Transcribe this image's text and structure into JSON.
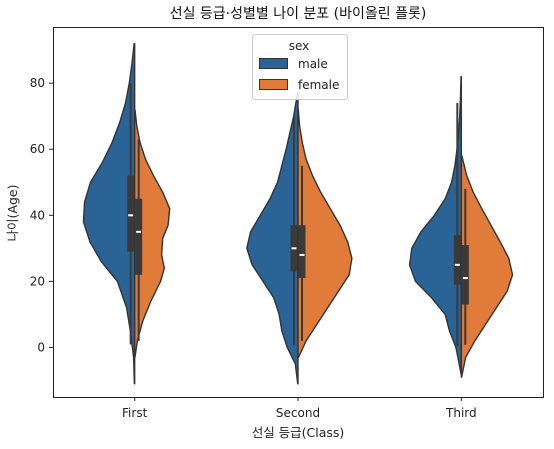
{
  "chart_data": {
    "type": "violin",
    "title": "선실 등급·성별별 나이 분포 (바이올린 플롯)",
    "xlabel": "선실 등급(Class)",
    "ylabel": "나이(Age)",
    "categories": [
      "First",
      "Second",
      "Third"
    ],
    "yticks": [
      0,
      20,
      40,
      60,
      80
    ],
    "ylim": [
      -15,
      97
    ],
    "split": true,
    "legend": {
      "title": "sex",
      "position": "top-center",
      "entries": [
        "male",
        "female"
      ]
    },
    "series": [
      {
        "name": "male",
        "color": "#2a6496",
        "side": "left",
        "groups": [
          {
            "category": "First",
            "min": 0.9,
            "q1": 29,
            "median": 40,
            "q3": 52,
            "max": 80,
            "whisker_low": 0.9,
            "whisker_high": 80,
            "kde_extent": [
              -11,
              92
            ],
            "profile": [
              [
                -11,
                0.005
              ],
              [
                -3,
                0.02
              ],
              [
                5,
                0.08
              ],
              [
                12,
                0.15
              ],
              [
                20,
                0.32
              ],
              [
                26,
                0.62
              ],
              [
                32,
                0.83
              ],
              [
                38,
                0.95
              ],
              [
                44,
                0.93
              ],
              [
                50,
                0.82
              ],
              [
                56,
                0.6
              ],
              [
                62,
                0.42
              ],
              [
                68,
                0.28
              ],
              [
                74,
                0.17
              ],
              [
                80,
                0.1
              ],
              [
                86,
                0.05
              ],
              [
                92,
                0.01
              ]
            ]
          },
          {
            "category": "Second",
            "min": 0.7,
            "q1": 23,
            "median": 30,
            "q3": 37,
            "max": 70,
            "whisker_low": 0.7,
            "whisker_high": 70,
            "kde_extent": [
              -11,
              77
            ],
            "profile": [
              [
                -11,
                0.005
              ],
              [
                -5,
                0.05
              ],
              [
                0,
                0.2
              ],
              [
                5,
                0.3
              ],
              [
                10,
                0.35
              ],
              [
                15,
                0.45
              ],
              [
                20,
                0.65
              ],
              [
                25,
                0.85
              ],
              [
                30,
                0.95
              ],
              [
                35,
                0.88
              ],
              [
                40,
                0.7
              ],
              [
                45,
                0.52
              ],
              [
                50,
                0.38
              ],
              [
                55,
                0.3
              ],
              [
                60,
                0.22
              ],
              [
                65,
                0.15
              ],
              [
                70,
                0.08
              ],
              [
                74,
                0.04
              ],
              [
                77,
                0.005
              ]
            ]
          },
          {
            "category": "Third",
            "min": 0.4,
            "q1": 19,
            "median": 25,
            "q3": 34,
            "max": 74,
            "whisker_low": 0.4,
            "whisker_high": 74,
            "kde_extent": [
              -8,
              82
            ],
            "profile": [
              [
                -8,
                0.005
              ],
              [
                0,
                0.1
              ],
              [
                5,
                0.22
              ],
              [
                10,
                0.3
              ],
              [
                15,
                0.55
              ],
              [
                20,
                0.85
              ],
              [
                25,
                0.96
              ],
              [
                30,
                0.92
              ],
              [
                35,
                0.75
              ],
              [
                40,
                0.5
              ],
              [
                45,
                0.3
              ],
              [
                50,
                0.18
              ],
              [
                55,
                0.12
              ],
              [
                60,
                0.08
              ],
              [
                65,
                0.05
              ],
              [
                70,
                0.03
              ],
              [
                76,
                0.015
              ],
              [
                82,
                0.005
              ]
            ]
          }
        ]
      },
      {
        "name": "female",
        "color": "#e07b39",
        "side": "right",
        "groups": [
          {
            "category": "First",
            "min": 2,
            "q1": 22,
            "median": 35,
            "q3": 45,
            "max": 63,
            "whisker_low": 2,
            "whisker_high": 63,
            "kde_extent": [
              -3,
              72
            ],
            "profile": [
              [
                -3,
                0.005
              ],
              [
                2,
                0.05
              ],
              [
                8,
                0.15
              ],
              [
                14,
                0.3
              ],
              [
                20,
                0.48
              ],
              [
                24,
                0.55
              ],
              [
                28,
                0.5
              ],
              [
                33,
                0.52
              ],
              [
                37,
                0.62
              ],
              [
                42,
                0.65
              ],
              [
                47,
                0.52
              ],
              [
                52,
                0.35
              ],
              [
                57,
                0.2
              ],
              [
                62,
                0.1
              ],
              [
                67,
                0.04
              ],
              [
                72,
                0.005
              ]
            ]
          },
          {
            "category": "Second",
            "min": 2,
            "q1": 21,
            "median": 28,
            "q3": 37,
            "max": 55,
            "whisker_low": 2,
            "whisker_high": 55,
            "kde_extent": [
              -3,
              72
            ],
            "profile": [
              [
                -3,
                0.01
              ],
              [
                2,
                0.15
              ],
              [
                7,
                0.35
              ],
              [
                12,
                0.55
              ],
              [
                17,
                0.75
              ],
              [
                22,
                0.95
              ],
              [
                27,
                1.0
              ],
              [
                32,
                0.92
              ],
              [
                37,
                0.78
              ],
              [
                42,
                0.6
              ],
              [
                47,
                0.42
              ],
              [
                52,
                0.27
              ],
              [
                57,
                0.15
              ],
              [
                62,
                0.08
              ],
              [
                67,
                0.03
              ],
              [
                72,
                0.005
              ]
            ]
          },
          {
            "category": "Third",
            "min": 0.8,
            "q1": 13,
            "median": 21,
            "q3": 31,
            "max": 48,
            "whisker_low": 0.8,
            "whisker_high": 48,
            "kde_extent": [
              -9,
              58
            ],
            "profile": [
              [
                -9,
                0.005
              ],
              [
                -3,
                0.08
              ],
              [
                2,
                0.25
              ],
              [
                7,
                0.45
              ],
              [
                12,
                0.65
              ],
              [
                17,
                0.85
              ],
              [
                22,
                0.95
              ],
              [
                27,
                0.88
              ],
              [
                32,
                0.72
              ],
              [
                37,
                0.55
              ],
              [
                42,
                0.38
              ],
              [
                47,
                0.22
              ],
              [
                52,
                0.1
              ],
              [
                58,
                0.01
              ]
            ]
          }
        ]
      }
    ]
  }
}
